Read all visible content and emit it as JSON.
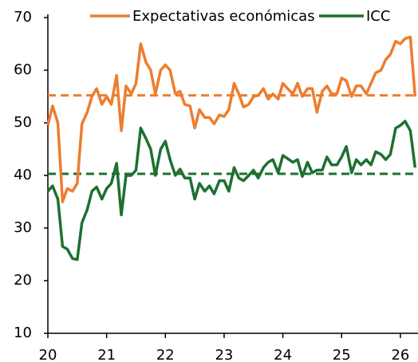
{
  "chart_data": {
    "type": "line",
    "x": [
      20,
      20.08,
      20.17,
      20.25,
      20.33,
      20.42,
      20.5,
      20.58,
      20.67,
      20.75,
      20.83,
      20.92,
      21,
      21.08,
      21.17,
      21.25,
      21.33,
      21.42,
      21.5,
      21.58,
      21.67,
      21.75,
      21.83,
      21.92,
      22,
      22.08,
      22.17,
      22.25,
      22.33,
      22.42,
      22.5,
      22.58,
      22.67,
      22.75,
      22.83,
      22.92,
      23,
      23.08,
      23.17,
      23.25,
      23.33,
      23.42,
      23.5,
      23.58,
      23.67,
      23.75,
      23.83,
      23.92,
      24,
      24.08,
      24.17,
      24.25,
      24.33,
      24.42,
      24.5,
      24.58,
      24.67,
      24.75,
      24.83,
      24.92,
      25,
      25.08,
      25.17,
      25.25,
      25.33,
      25.42,
      25.5,
      25.58,
      25.67,
      25.75,
      25.83,
      25.92,
      26,
      26.08,
      26.17,
      26.25
    ],
    "series": [
      {
        "name": "Expectativas económicas",
        "color": "#ed7d31",
        "values": [
          49.5,
          53.2,
          50,
          35,
          37.5,
          37,
          38.5,
          49.8,
          52,
          55,
          56.5,
          53.5,
          55,
          53.5,
          59,
          48.5,
          57,
          55.5,
          57.5,
          65,
          61.5,
          60,
          55.5,
          60,
          61,
          60,
          55.5,
          56,
          53.5,
          53.2,
          49,
          52.5,
          51,
          51,
          49.8,
          51.5,
          51.2,
          52.5,
          57.5,
          55.5,
          53,
          53.5,
          55,
          55.2,
          56.5,
          54.5,
          55.5,
          54.5,
          57.5,
          56.5,
          55.5,
          57.5,
          55,
          56.5,
          56.5,
          52,
          56,
          57,
          55.5,
          55.5,
          58.5,
          58,
          55,
          57,
          57,
          55.5,
          57.5,
          59.5,
          60,
          62,
          63,
          65.5,
          65,
          66,
          66.3,
          55
        ]
      },
      {
        "name": "ICC",
        "color": "#1e7031",
        "values": [
          37,
          38,
          35.5,
          26.5,
          26,
          24.2,
          24,
          31,
          33.5,
          37,
          37.8,
          35.5,
          37.5,
          38.5,
          42.3,
          32.5,
          40,
          40,
          41,
          49,
          47,
          45,
          40,
          45,
          46.5,
          43,
          40,
          41.2,
          39.5,
          39.5,
          35.5,
          38.5,
          37,
          38,
          36.5,
          39,
          39,
          37,
          41.5,
          39.5,
          39,
          40,
          41,
          39.5,
          41.5,
          42.5,
          43,
          40.5,
          43.8,
          43.2,
          42.5,
          43,
          39.8,
          42.5,
          40.5,
          41,
          41,
          43.5,
          42,
          42,
          43.5,
          45.5,
          40.5,
          43,
          42,
          43,
          42,
          44.5,
          44,
          43,
          44,
          49,
          49.5,
          50.3,
          48.5,
          41.5
        ]
      }
    ],
    "reference_lines": [
      {
        "value": 55.2,
        "color": "#ed7d31"
      },
      {
        "value": 40.3,
        "color": "#1e7031"
      }
    ],
    "xlim": [
      20,
      26.3
    ],
    "xticks": [
      20,
      21,
      22,
      23,
      24,
      25,
      26
    ],
    "ylim": [
      10,
      70
    ],
    "yticks": [
      10,
      20,
      30,
      40,
      50,
      60,
      70
    ],
    "grid": false
  }
}
